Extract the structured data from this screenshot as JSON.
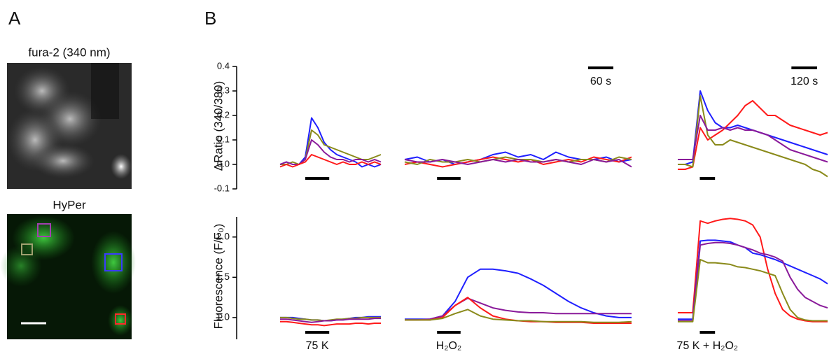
{
  "panel_a": {
    "label": "A",
    "image1_title": "fura-2 (340 nm)",
    "image2_title": "HyPer"
  },
  "panel_b_label": "B",
  "chart_data": [
    {
      "type": "line",
      "y_label": "ΔRatio (340/380)",
      "ylim": [
        -0.1,
        0.4
      ],
      "yticks": [
        -0.1,
        {
          "value": 0,
          "label": "0.0"
        },
        0.1,
        0.2,
        0.3,
        0.4
      ],
      "panels": [
        {
          "xlim": [
            0,
            240
          ],
          "x": [
            0,
            15,
            30,
            45,
            60,
            75,
            90,
            105,
            120,
            135,
            150,
            165,
            180,
            195,
            210,
            225,
            240
          ],
          "stimulus": [
            60,
            117
          ],
          "series": [
            {
              "color": "#1f1fff",
              "values": [
                0,
                0.01,
                0,
                0,
                0.03,
                0.19,
                0.15,
                0.09,
                0.06,
                0.04,
                0.03,
                0.02,
                0.01,
                -0.01,
                0,
                -0.01,
                0
              ]
            },
            {
              "color": "#8a8a1a",
              "values": [
                0,
                0,
                0.01,
                0,
                0.02,
                0.14,
                0.12,
                0.08,
                0.07,
                0.06,
                0.05,
                0.04,
                0.03,
                0.02,
                0.02,
                0.03,
                0.04
              ]
            },
            {
              "color": "#8a1a9a",
              "values": [
                0,
                0.01,
                0,
                0,
                0.02,
                0.1,
                0.08,
                0.05,
                0.03,
                0.02,
                0.02,
                0.01,
                0.02,
                0.02,
                0.01,
                0.02,
                0.01
              ]
            },
            {
              "color": "#ff1a1a",
              "values": [
                -0.01,
                0,
                -0.01,
                0,
                0.01,
                0.04,
                0.03,
                0.02,
                0.01,
                0,
                0.01,
                0,
                0,
                0.01,
                0,
                0.01,
                0
              ]
            }
          ]
        },
        {
          "xlim": [
            0,
            540
          ],
          "x": [
            0,
            30,
            60,
            90,
            120,
            150,
            180,
            210,
            240,
            270,
            300,
            330,
            360,
            390,
            420,
            450,
            480,
            510,
            540
          ],
          "stimulus": [
            77,
            133
          ],
          "scale_bar": {
            "value": 60,
            "label": "60 s"
          },
          "series": [
            {
              "color": "#1f1fff",
              "values": [
                0.02,
                0.03,
                0.01,
                0.02,
                0,
                0.01,
                0.02,
                0.04,
                0.05,
                0.03,
                0.04,
                0.02,
                0.05,
                0.03,
                0.02,
                0.02,
                0.03,
                0.01,
                0.02
              ]
            },
            {
              "color": "#ff1a1a",
              "values": [
                0,
                0.01,
                0,
                -0.01,
                0,
                0.01,
                0.02,
                0.03,
                0.02,
                0.01,
                0.02,
                0,
                0.01,
                0.02,
                0.01,
                0.03,
                0.02,
                0.01,
                0.03
              ]
            },
            {
              "color": "#8a8a1a",
              "values": [
                0.01,
                0,
                0.02,
                0.01,
                0.01,
                0.02,
                0.01,
                0.02,
                0.03,
                0.02,
                0.02,
                0.01,
                0.02,
                0.01,
                0.02,
                0.02,
                0.01,
                0.03,
                0.02
              ]
            },
            {
              "color": "#8a1a9a",
              "values": [
                0.02,
                0.01,
                0.01,
                0.02,
                0.01,
                0,
                0.01,
                0.02,
                0.01,
                0.02,
                0.01,
                0.01,
                0.02,
                0.01,
                0,
                0.02,
                0.01,
                0.02,
                -0.01
              ]
            }
          ]
        },
        {
          "xlim": [
            0,
            700
          ],
          "x": [
            0,
            35,
            70,
            105,
            140,
            175,
            210,
            245,
            280,
            315,
            350,
            385,
            420,
            455,
            490,
            525,
            560,
            595,
            630,
            665,
            700
          ],
          "stimulus": [
            103,
            174
          ],
          "scale_bar": {
            "value": 120,
            "label": "120 s"
          },
          "series": [
            {
              "color": "#1f1fff",
              "values": [
                0,
                0,
                0.01,
                0.3,
                0.22,
                0.17,
                0.15,
                0.15,
                0.16,
                0.15,
                0.14,
                0.13,
                0.12,
                0.11,
                0.1,
                0.09,
                0.08,
                0.07,
                0.06,
                0.05,
                0.04
              ]
            },
            {
              "color": "#ff1a1a",
              "values": [
                -0.02,
                -0.02,
                -0.01,
                0.15,
                0.1,
                0.12,
                0.14,
                0.17,
                0.2,
                0.24,
                0.26,
                0.23,
                0.2,
                0.2,
                0.18,
                0.16,
                0.15,
                0.14,
                0.13,
                0.12,
                0.13
              ]
            },
            {
              "color": "#8a8a1a",
              "values": [
                0,
                0,
                -0.01,
                0.28,
                0.12,
                0.08,
                0.08,
                0.1,
                0.09,
                0.08,
                0.07,
                0.06,
                0.05,
                0.04,
                0.03,
                0.02,
                0.01,
                0,
                -0.02,
                -0.03,
                -0.05
              ]
            },
            {
              "color": "#8a1a9a",
              "values": [
                0.02,
                0.02,
                0.02,
                0.2,
                0.14,
                0.14,
                0.15,
                0.14,
                0.15,
                0.14,
                0.14,
                0.13,
                0.12,
                0.1,
                0.08,
                0.06,
                0.05,
                0.04,
                0.03,
                0.02,
                0.01
              ]
            }
          ]
        }
      ]
    },
    {
      "type": "line",
      "y_label": "Fluorescence (F/F₀)",
      "ylim": [
        0.73,
        2.25
      ],
      "yticks": [
        {
          "value": 1,
          "label": "1.0"
        },
        1.5,
        {
          "value": 2,
          "label": "2.0"
        }
      ],
      "panels": [
        {
          "xlim": [
            0,
            240
          ],
          "x": [
            0,
            15,
            30,
            45,
            60,
            75,
            90,
            105,
            120,
            135,
            150,
            165,
            180,
            195,
            210,
            225,
            240
          ],
          "stimulus": [
            60,
            117
          ],
          "stimulus_label": "75 K",
          "series": [
            {
              "color": "#1f1fff",
              "values": [
                1.0,
                1.0,
                1.0,
                0.99,
                0.98,
                0.97,
                0.97,
                0.96,
                0.96,
                0.97,
                0.98,
                0.99,
                1.0,
                1.0,
                1.01,
                1.01,
                1.01
              ]
            },
            {
              "color": "#8a8a1a",
              "values": [
                1.0,
                1.0,
                0.99,
                0.98,
                0.98,
                0.97,
                0.97,
                0.96,
                0.97,
                0.98,
                0.98,
                0.99,
                0.99,
                1.0,
                1.0,
                1.0,
                1.0
              ]
            },
            {
              "color": "#8a1a9a",
              "values": [
                0.98,
                0.98,
                0.97,
                0.96,
                0.95,
                0.94,
                0.95,
                0.96,
                0.96,
                0.97,
                0.97,
                0.98,
                0.98,
                0.98,
                0.98,
                0.99,
                0.99
              ]
            },
            {
              "color": "#ff1a1a",
              "values": [
                0.95,
                0.95,
                0.94,
                0.93,
                0.92,
                0.91,
                0.91,
                0.9,
                0.91,
                0.92,
                0.92,
                0.92,
                0.93,
                0.93,
                0.92,
                0.93,
                0.93
              ]
            }
          ]
        },
        {
          "xlim": [
            0,
            540
          ],
          "x": [
            0,
            30,
            60,
            90,
            120,
            150,
            180,
            210,
            240,
            270,
            300,
            330,
            360,
            390,
            420,
            450,
            480,
            510,
            540
          ],
          "stimulus": [
            77,
            133
          ],
          "stimulus_label": "H₂O₂",
          "series": [
            {
              "color": "#1f1fff",
              "values": [
                0.98,
                0.98,
                0.98,
                1.02,
                1.2,
                1.5,
                1.6,
                1.6,
                1.58,
                1.55,
                1.48,
                1.4,
                1.3,
                1.2,
                1.12,
                1.06,
                1.02,
                1.0,
                1.0
              ]
            },
            {
              "color": "#8a1a9a",
              "values": [
                0.97,
                0.97,
                0.98,
                1.02,
                1.15,
                1.24,
                1.18,
                1.12,
                1.09,
                1.07,
                1.06,
                1.06,
                1.05,
                1.05,
                1.05,
                1.05,
                1.05,
                1.05,
                1.05
              ]
            },
            {
              "color": "#ff1a1a",
              "values": [
                0.97,
                0.97,
                0.97,
                1.0,
                1.15,
                1.25,
                1.12,
                1.02,
                0.98,
                0.96,
                0.95,
                0.95,
                0.94,
                0.94,
                0.94,
                0.93,
                0.93,
                0.93,
                0.93
              ]
            },
            {
              "color": "#8a8a1a",
              "values": [
                0.97,
                0.97,
                0.97,
                0.99,
                1.05,
                1.1,
                1.02,
                0.98,
                0.97,
                0.96,
                0.96,
                0.95,
                0.95,
                0.95,
                0.95,
                0.94,
                0.94,
                0.94,
                0.95
              ]
            }
          ]
        },
        {
          "xlim": [
            0,
            700
          ],
          "x": [
            0,
            35,
            70,
            105,
            140,
            175,
            210,
            245,
            280,
            315,
            350,
            385,
            420,
            455,
            490,
            525,
            560,
            595,
            630,
            665,
            700
          ],
          "stimulus": [
            103,
            174
          ],
          "stimulus_label": "75 K + H₂O₂",
          "series": [
            {
              "color": "#ff1a1a",
              "values": [
                1.06,
                1.06,
                1.06,
                2.2,
                2.17,
                2.2,
                2.22,
                2.23,
                2.22,
                2.2,
                2.15,
                2.0,
                1.6,
                1.3,
                1.1,
                1.02,
                0.98,
                0.96,
                0.95,
                0.95,
                0.95
              ]
            },
            {
              "color": "#1f1fff",
              "values": [
                0.98,
                0.98,
                0.98,
                1.95,
                1.96,
                1.96,
                1.95,
                1.94,
                1.9,
                1.87,
                1.8,
                1.78,
                1.75,
                1.72,
                1.68,
                1.64,
                1.6,
                1.56,
                1.52,
                1.48,
                1.42
              ]
            },
            {
              "color": "#8a1a9a",
              "values": [
                0.96,
                0.96,
                0.96,
                1.9,
                1.92,
                1.93,
                1.93,
                1.92,
                1.9,
                1.87,
                1.84,
                1.8,
                1.78,
                1.75,
                1.7,
                1.5,
                1.35,
                1.25,
                1.2,
                1.15,
                1.12
              ]
            },
            {
              "color": "#8a8a1a",
              "values": [
                0.95,
                0.95,
                0.95,
                1.72,
                1.68,
                1.68,
                1.67,
                1.66,
                1.63,
                1.62,
                1.6,
                1.58,
                1.55,
                1.52,
                1.3,
                1.1,
                1.0,
                0.97,
                0.96,
                0.96,
                0.96
              ]
            }
          ]
        }
      ]
    }
  ]
}
